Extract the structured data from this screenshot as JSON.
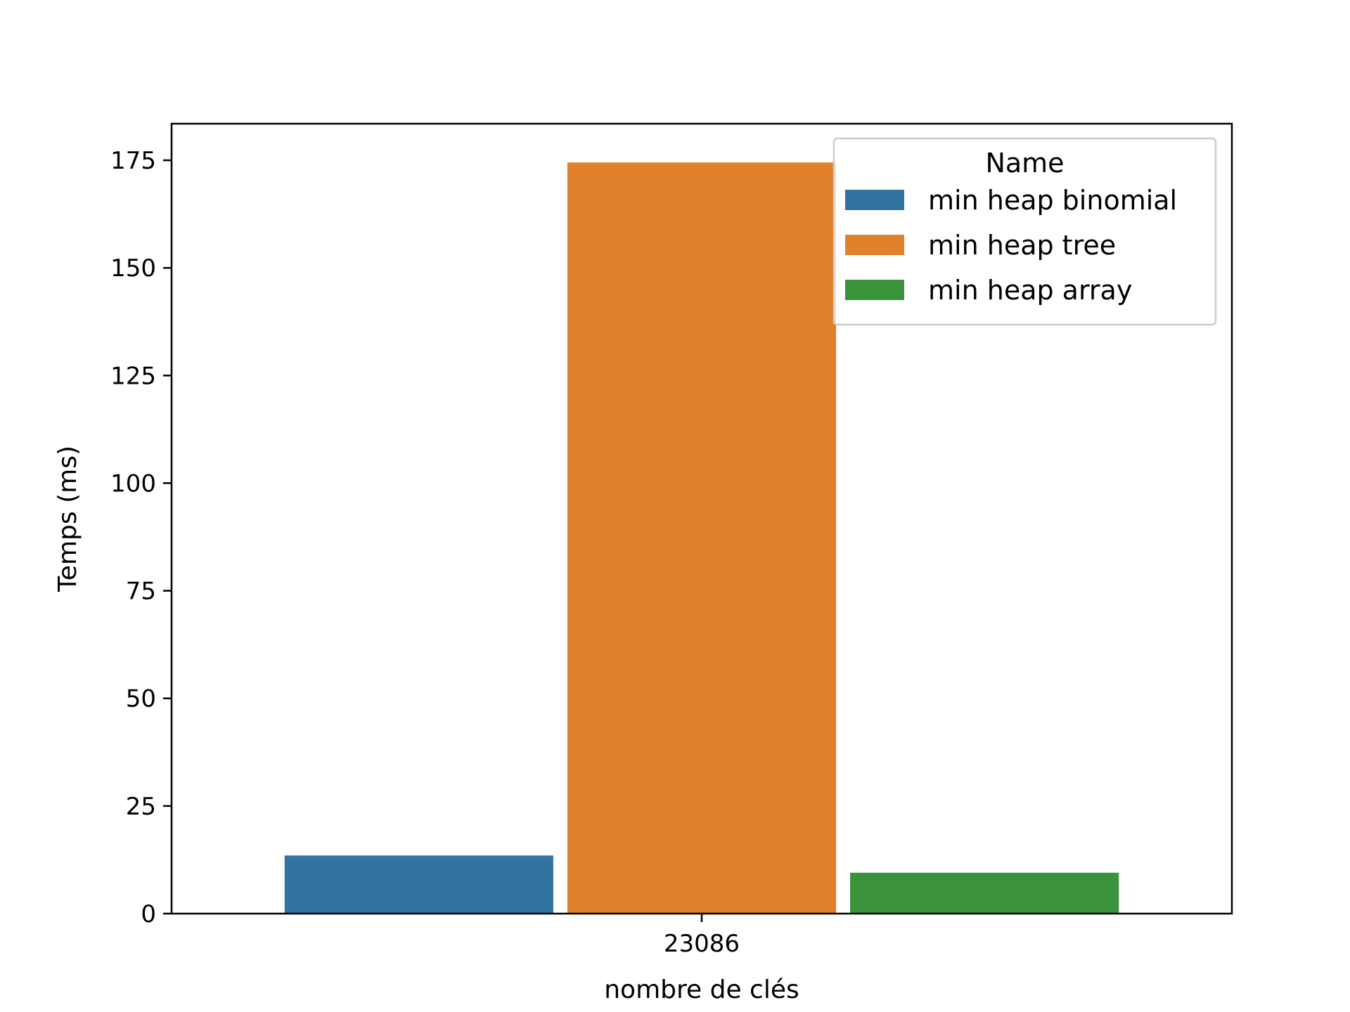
{
  "chart_data": {
    "type": "bar",
    "categories": [
      "23086"
    ],
    "series": [
      {
        "name": "min heap binomial",
        "values": [
          13.5
        ],
        "color": "#3274a1"
      },
      {
        "name": "min heap tree",
        "values": [
          174.5
        ],
        "color": "#e1812c"
      },
      {
        "name": "min heap array",
        "values": [
          9.5
        ],
        "color": "#3a923a"
      }
    ],
    "xlabel": "nombre de clés",
    "ylabel": "Temps (ms)",
    "ylim": [
      0,
      183.5
    ],
    "yticks": [
      0,
      25,
      50,
      75,
      100,
      125,
      150,
      175
    ],
    "legend": {
      "title": "Name",
      "position": "top-right"
    },
    "grid": false
  }
}
